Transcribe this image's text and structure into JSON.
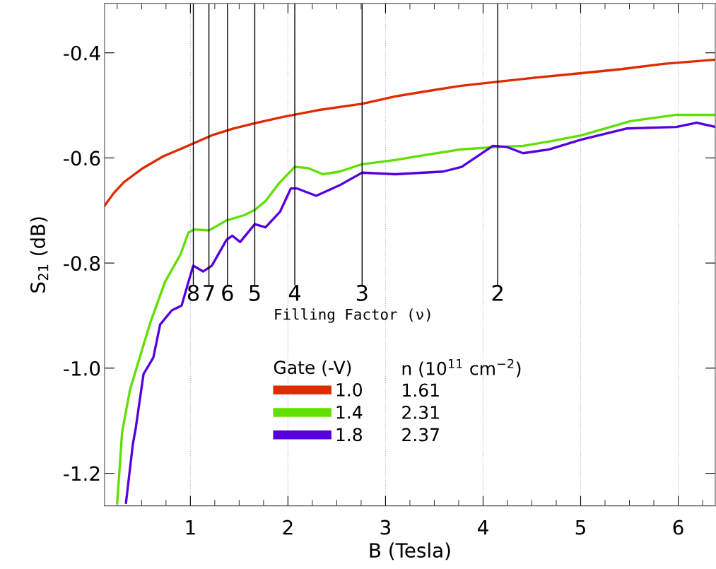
{
  "chart_data": {
    "type": "line",
    "xlabel": "B (Tesla)",
    "ylabel": "S$_{21}$ (dB)",
    "xlim": [
      0.12,
      6.38
    ],
    "xticks": [
      1,
      2,
      3,
      4,
      5,
      6
    ],
    "ylim": [
      -1.262,
      -0.306
    ],
    "yticks": [
      -1.2,
      {
        "value": -1.0,
        "label": "-1.0"
      },
      -0.8,
      -0.6,
      -0.4
    ],
    "grid": "x",
    "legend": "bottom",
    "legend_title": "Gate (-V)",
    "line_style": "solid",
    "marker": "none",
    "ref_lines": [
      {
        "axis": "x",
        "value": 1.03,
        "color": "#000000"
      },
      {
        "axis": "x",
        "value": 1.19,
        "color": "#000000"
      },
      {
        "axis": "x",
        "value": 1.38,
        "color": "#000000"
      },
      {
        "axis": "x",
        "value": 1.66,
        "color": "#000000"
      },
      {
        "axis": "x",
        "value": 2.07,
        "color": "#000000"
      },
      {
        "axis": "x",
        "value": 2.76,
        "color": "#000000"
      },
      {
        "axis": "x",
        "value": 4.15,
        "color": "#000000"
      }
    ],
    "annotations": [
      "8",
      "7",
      "6",
      "5",
      "4",
      "3",
      "2",
      "Filling Factor (ν)",
      "n (10$^{11}$ cm$^{−2}$)",
      "1.61",
      "2.31",
      "2.37"
    ],
    "series": [
      {
        "name": "1.0",
        "color": "#e02a00",
        "x": [
          0.12,
          0.21,
          0.32,
          0.5,
          0.72,
          1.0,
          1.22,
          1.44,
          1.66,
          1.95,
          2.31,
          2.76,
          3.1,
          3.39,
          3.76,
          4.15,
          4.55,
          4.99,
          5.42,
          5.85,
          6.38
        ],
        "values": [
          -0.691,
          -0.668,
          -0.646,
          -0.621,
          -0.597,
          -0.575,
          -0.557,
          -0.544,
          -0.534,
          -0.522,
          -0.509,
          -0.497,
          -0.483,
          -0.474,
          -0.463,
          -0.455,
          -0.447,
          -0.439,
          -0.431,
          -0.421,
          -0.413
        ]
      },
      {
        "name": "1.4",
        "color": "#5fe000",
        "x": [
          0.25,
          0.3,
          0.38,
          0.48,
          0.59,
          0.74,
          0.9,
          0.98,
          1.04,
          1.19,
          1.37,
          1.55,
          1.66,
          1.77,
          1.91,
          2.07,
          2.2,
          2.36,
          2.53,
          2.76,
          3.1,
          3.39,
          3.76,
          4.14,
          4.41,
          4.7,
          5.01,
          5.51,
          5.98,
          6.38
        ],
        "values": [
          -1.256,
          -1.122,
          -1.042,
          -0.98,
          -0.913,
          -0.836,
          -0.783,
          -0.742,
          -0.736,
          -0.738,
          -0.719,
          -0.709,
          -0.699,
          -0.682,
          -0.648,
          -0.617,
          -0.619,
          -0.631,
          -0.626,
          -0.612,
          -0.604,
          -0.595,
          -0.584,
          -0.579,
          -0.577,
          -0.568,
          -0.557,
          -0.53,
          -0.518,
          -0.518
        ]
      },
      {
        "name": "1.8",
        "color": "#5500e0",
        "x": [
          0.34,
          0.41,
          0.44,
          0.52,
          0.62,
          0.69,
          0.81,
          0.91,
          0.98,
          1.03,
          1.13,
          1.22,
          1.37,
          1.43,
          1.51,
          1.66,
          1.77,
          1.92,
          2.03,
          2.09,
          2.29,
          2.53,
          2.76,
          3.1,
          3.59,
          3.78,
          4.1,
          4.24,
          4.41,
          4.67,
          5.01,
          5.47,
          5.98,
          6.19,
          6.38
        ],
        "values": [
          -1.256,
          -1.145,
          -1.114,
          -1.011,
          -0.98,
          -0.917,
          -0.89,
          -0.881,
          -0.836,
          -0.805,
          -0.816,
          -0.805,
          -0.756,
          -0.748,
          -0.76,
          -0.726,
          -0.732,
          -0.702,
          -0.658,
          -0.658,
          -0.672,
          -0.652,
          -0.628,
          -0.631,
          -0.626,
          -0.617,
          -0.577,
          -0.579,
          -0.591,
          -0.584,
          -0.565,
          -0.544,
          -0.541,
          -0.533,
          -0.541
        ]
      }
    ]
  }
}
